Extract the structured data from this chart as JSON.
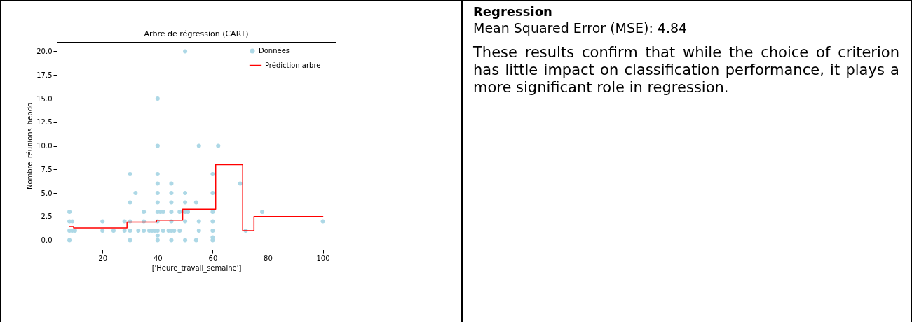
{
  "chart_data": [
    {
      "type": "scatter",
      "title": "Arbre de régression (CART)",
      "xlabel": "['Heure_travail_semaine']",
      "ylabel": "Nombre_réunions_hebdo",
      "xlim": [
        3.4,
        104.7
      ],
      "ylim": [
        -1,
        21
      ],
      "xticks": [
        20,
        40,
        60,
        80,
        100
      ],
      "yticks": [
        {
          "value": 0,
          "label": "0.0"
        },
        {
          "value": 2.5,
          "label": "2.5"
        },
        {
          "value": 5,
          "label": "5.0"
        },
        {
          "value": 7.5,
          "label": "7.5"
        },
        {
          "value": 10,
          "label": "10.0"
        },
        {
          "value": 12.5,
          "label": "12.5"
        },
        {
          "value": 15,
          "label": "15.0"
        },
        {
          "value": 17.5,
          "label": "17.5"
        },
        {
          "value": 20,
          "label": "20.0"
        }
      ],
      "grid": false,
      "legend": "top right",
      "series": [
        {
          "name": "Données",
          "type": "scatter",
          "marker": "circle",
          "color": "#add8e6",
          "x": [
            8,
            8,
            8,
            8,
            9,
            9,
            10,
            20,
            20,
            24,
            28,
            28,
            30,
            30,
            30,
            30,
            30,
            32,
            33,
            35,
            35,
            35,
            37,
            38,
            39,
            40,
            40,
            40,
            40,
            40,
            40,
            40,
            40,
            40,
            40,
            40,
            41,
            42,
            42,
            44,
            45,
            45,
            45,
            45,
            45,
            45,
            45,
            46,
            48,
            48,
            50,
            50,
            50,
            50,
            50,
            50,
            51,
            54,
            54,
            55,
            55,
            55,
            60,
            60,
            60,
            60,
            60,
            60,
            60,
            62,
            70,
            72,
            78,
            100
          ],
          "values": [
            3,
            2,
            1,
            0,
            2,
            1,
            1,
            2,
            1,
            1,
            2,
            1,
            7,
            4,
            2,
            1,
            0,
            5,
            1,
            3,
            2,
            1,
            1,
            1,
            1,
            15,
            10,
            7,
            6,
            5,
            4,
            3,
            2,
            1,
            0.5,
            0,
            3,
            3,
            1,
            1,
            6,
            5,
            4,
            3,
            2,
            1,
            0,
            1,
            3,
            1,
            20,
            5,
            4,
            3,
            2,
            0,
            3,
            4,
            0,
            10,
            2,
            1,
            7,
            5,
            3,
            2,
            1,
            0.3,
            0,
            10,
            6,
            1,
            3,
            2
          ]
        },
        {
          "name": "Prédiction arbre",
          "type": "step",
          "color": "#ff0000",
          "x": [
            8,
            9,
            9.5,
            28.9,
            39.6,
            49.1,
            61.1,
            70.9,
            75,
            100
          ],
          "values": [
            1.45,
            1.45,
            1.3,
            1.93,
            2.13,
            3.27,
            8,
            1,
            2.5,
            2.5
          ]
        }
      ]
    },
    {
      "type": "other",
      "title": "Regression",
      "annotations": [
        "Mean Squared Error (MSE): 4.84",
        "These results confirm that while the choice of criterion has little impact on classification performance, it plays a more significant role in regression."
      ]
    }
  ]
}
